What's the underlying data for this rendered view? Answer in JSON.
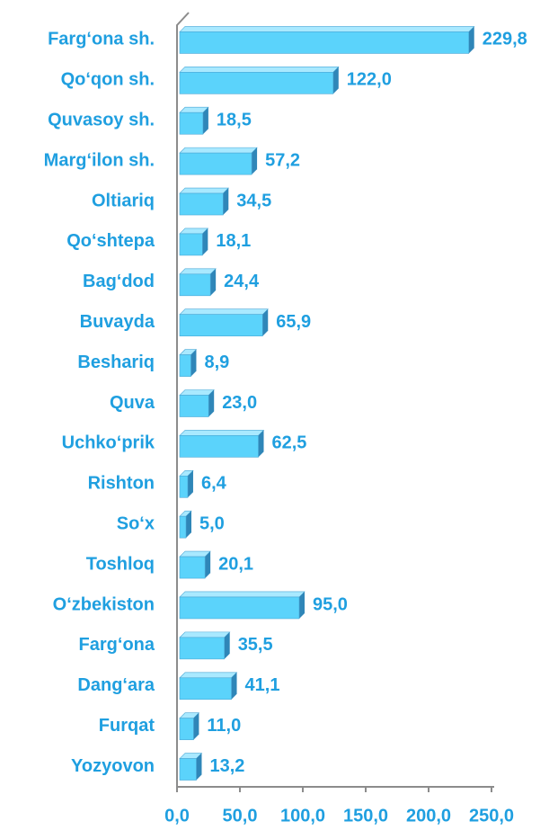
{
  "chart_data": {
    "type": "bar",
    "orientation": "horizontal",
    "categories": [
      "Farg‘ona sh.",
      "Qo‘qon sh.",
      "Quvasoy sh.",
      "Marg‘ilon sh.",
      "Oltiariq",
      "Qo‘shtepa",
      "Bag‘dod",
      "Buvayda",
      "Beshariq",
      "Quva",
      "Uchko‘prik",
      "Rishton",
      "So‘x",
      "Toshloq",
      "O‘zbekiston",
      "Farg‘ona",
      "Dang‘ara",
      "Furqat",
      "Yozyovon"
    ],
    "values": [
      229.8,
      122.0,
      18.5,
      57.2,
      34.5,
      18.1,
      24.4,
      65.9,
      8.9,
      23.0,
      62.5,
      6.4,
      5.0,
      20.1,
      95.0,
      35.5,
      41.1,
      11.0,
      13.2
    ],
    "value_labels": [
      "229,8",
      "122,0",
      "18,5",
      "57,2",
      "34,5",
      "18,1",
      "24,4",
      "65,9",
      "8,9",
      "23,0",
      "62,5",
      "6,4",
      "5,0",
      "20,1",
      "95,0",
      "35,5",
      "41,1",
      "11,0",
      "13,2"
    ],
    "color": "#5bd3fb",
    "xlim": [
      0,
      250
    ],
    "xticks": [
      {
        "value": 0,
        "label": "0,0"
      },
      {
        "value": 50,
        "label": "50,0"
      },
      {
        "value": 100,
        "label": "100,0"
      },
      {
        "value": 150,
        "label": "150,0"
      },
      {
        "value": 200,
        "label": "200,0"
      },
      {
        "value": 250,
        "label": "250,0"
      }
    ],
    "grid": false
  }
}
